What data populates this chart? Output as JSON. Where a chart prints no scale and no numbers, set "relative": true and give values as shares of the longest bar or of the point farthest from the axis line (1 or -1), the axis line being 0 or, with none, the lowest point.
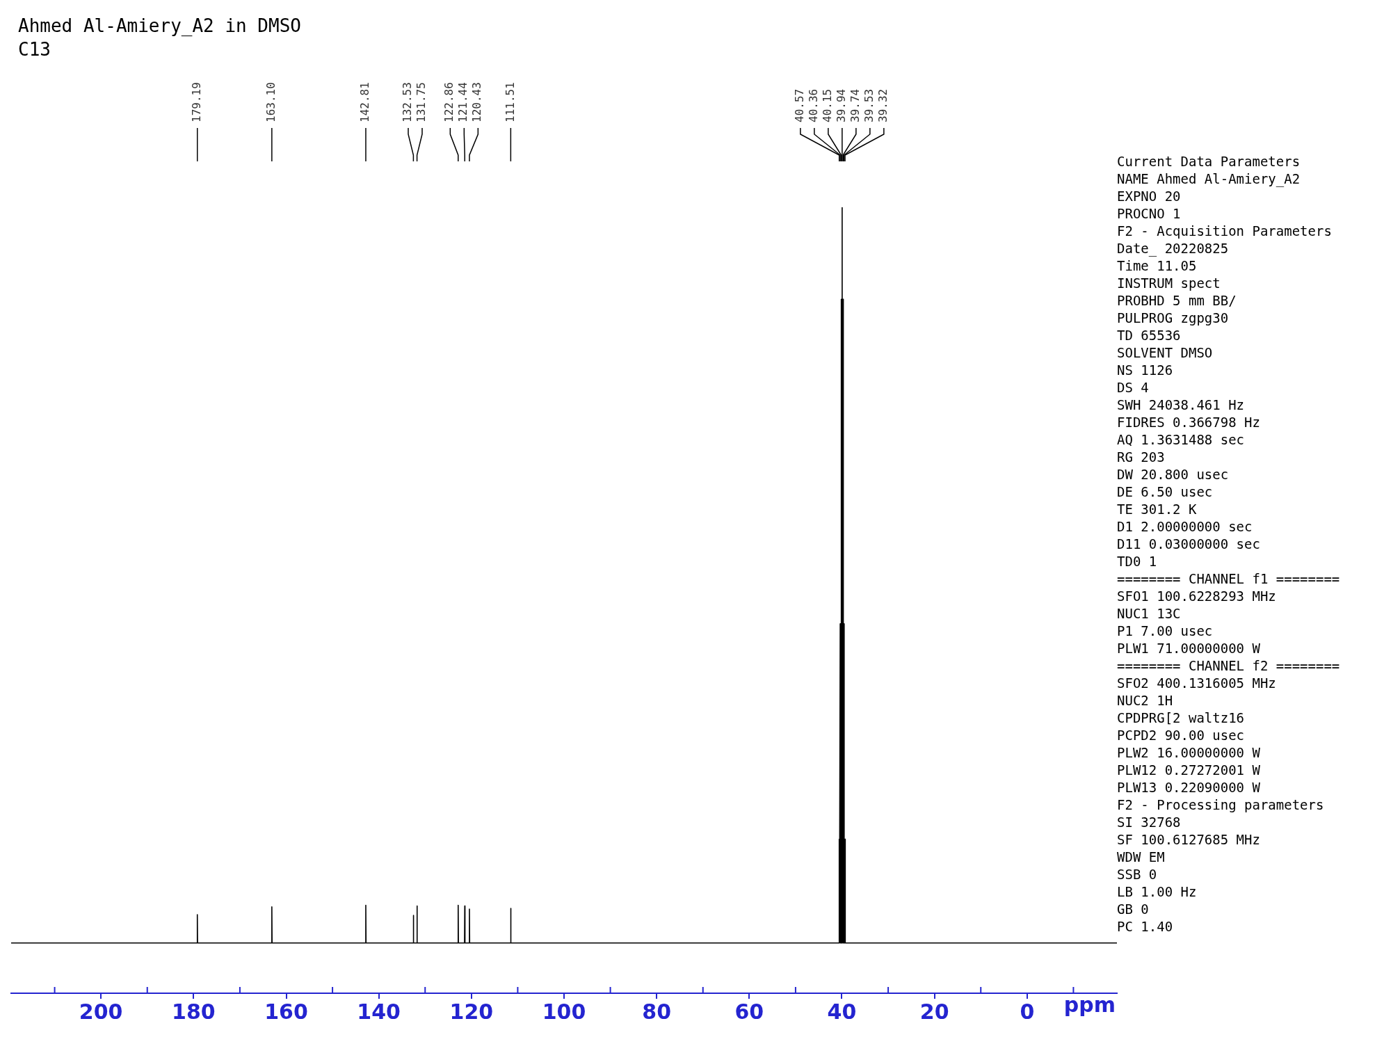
{
  "chart_data": {
    "type": "line",
    "title": "Ahmed Al-Amiery_A2 in DMSO",
    "subtitle": "C13",
    "xlabel": "ppm",
    "relative": true,
    "marker": "none",
    "line_style": "solid",
    "xlim": [
      219.4,
      -19.4
    ],
    "xticks": [
      200,
      180,
      160,
      140,
      120,
      100,
      80,
      60,
      40,
      20,
      0
    ],
    "series": [
      {
        "color": "#000000",
        "x": [
          219.4,
          179.24,
          179.19,
          179.14,
          163.15,
          163.1,
          163.05,
          142.86,
          142.81,
          142.76,
          132.58,
          132.53,
          132.48,
          131.8,
          131.75,
          131.7,
          122.91,
          122.86,
          122.81,
          121.49,
          121.44,
          121.39,
          120.48,
          120.43,
          120.38,
          111.56,
          111.51,
          111.46,
          40.62,
          40.57,
          40.52,
          40.41,
          40.36,
          40.31,
          40.2,
          40.15,
          40.1,
          39.99,
          39.94,
          39.89,
          39.79,
          39.74,
          39.69,
          39.58,
          39.53,
          39.48,
          39.37,
          39.32,
          39.27,
          -19.4
        ],
        "values": [
          0.064,
          0.064,
          0.1,
          0.064,
          0.064,
          0.11,
          0.064,
          0.064,
          0.112,
          0.064,
          0.064,
          0.099,
          0.064,
          0.064,
          0.111,
          0.064,
          0.064,
          0.112,
          0.064,
          0.064,
          0.111,
          0.064,
          0.064,
          0.107,
          0.064,
          0.064,
          0.108,
          0.064,
          0.064,
          0.196,
          0.064,
          0.064,
          0.47,
          0.064,
          0.064,
          0.883,
          0.064,
          0.064,
          1,
          0.064,
          0.064,
          0.883,
          0.064,
          0.064,
          0.47,
          0.064,
          0.064,
          0.196,
          0.064,
          0.064
        ]
      }
    ],
    "annotations": [
      {
        "text": "179.19",
        "x": 179.19
      },
      {
        "text": "163.10",
        "x": 163.1
      },
      {
        "text": "142.81",
        "x": 142.81
      },
      {
        "text": "132.53",
        "x": 132.53
      },
      {
        "text": "131.75",
        "x": 131.75
      },
      {
        "text": "122.86",
        "x": 122.86
      },
      {
        "text": "121.44",
        "x": 121.44
      },
      {
        "text": "120.43",
        "x": 120.43
      },
      {
        "text": "111.51",
        "x": 111.51
      },
      {
        "text": "40.57",
        "x": 40.57
      },
      {
        "text": "40.36",
        "x": 40.36
      },
      {
        "text": "40.15",
        "x": 40.15
      },
      {
        "text": "39.94",
        "x": 39.94
      },
      {
        "text": "39.74",
        "x": 39.74
      },
      {
        "text": "39.53",
        "x": 39.53
      },
      {
        "text": "39.32",
        "x": 39.32
      },
      "Current Data Parameters",
      "NAME Ahmed Al-Amiery_A2",
      "EXPNO 20",
      "PROCNO 1",
      "F2 - Acquisition Parameters",
      "Date_ 20220825",
      "Time 11.05",
      "INSTRUM spect",
      "PROBHD 5 mm BB/",
      "PULPROG zgpg30",
      "TD 65536",
      "SOLVENT DMSO",
      "NS 1126",
      "DS 4",
      "SWH 24038.461 Hz",
      "FIDRES 0.366798 Hz",
      "AQ 1.3631488 sec",
      "RG 203",
      "DW 20.800 usec",
      "DE 6.50 usec",
      "TE 301.2 K",
      "D1 2.00000000 sec",
      "D11 0.03000000 sec",
      "TD0 1",
      "======== CHANNEL f1 ========",
      "SFO1 100.6228293 MHz",
      "NUC1 13C",
      "P1 7.00 usec",
      "PLW1 71.00000000 W",
      "======== CHANNEL f2 ========",
      "SFO2 400.1316005 MHz",
      "NUC2 1H",
      "CPDPRG[2 waltz16",
      "PCPD2 90.00 usec",
      "PLW2 16.00000000 W",
      "PLW12 0.27272001 W",
      "PLW13 0.22090000 W",
      "F2 - Processing parameters",
      "SI 32768",
      "SF 100.6127685 MHz",
      "WDW EM",
      "SSB 0",
      "LB 1.00 Hz",
      "GB 0",
      "PC 1.40"
    ]
  }
}
